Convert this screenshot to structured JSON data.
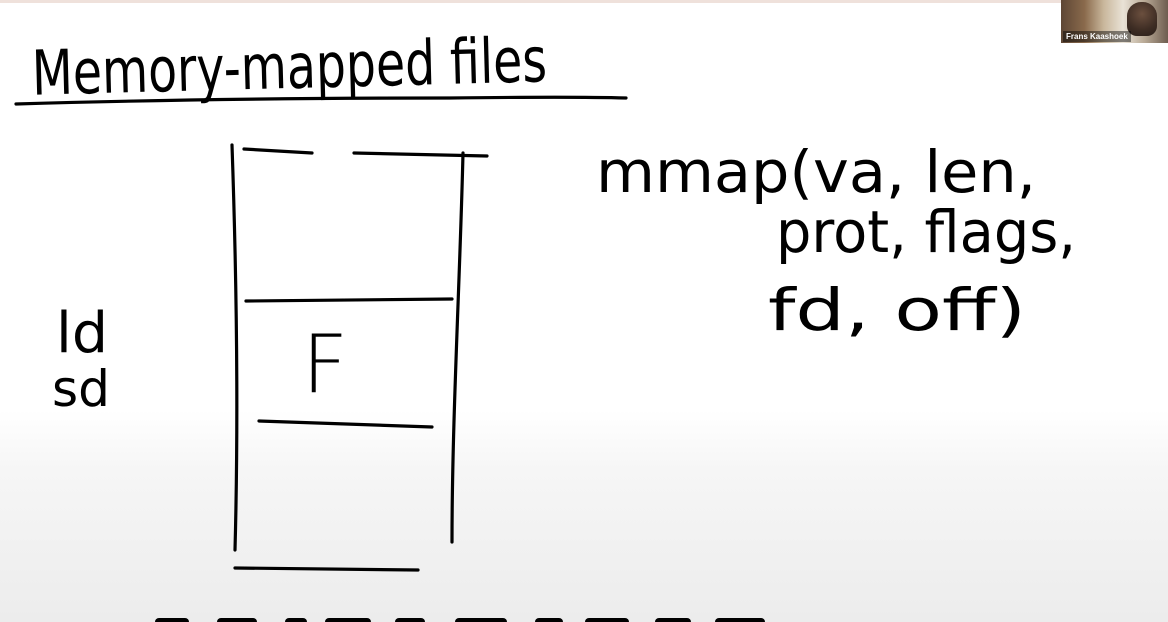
{
  "window": {
    "content": "whiteboard"
  },
  "whiteboard": {
    "title": "Memory-mapped files",
    "margin_notes": {
      "load": "ld",
      "store": "sd"
    },
    "region_label": "F",
    "syscall": {
      "line1": "mmap(va, len,",
      "line2": "prot, flags,",
      "line3": "fd, off)"
    }
  },
  "video": {
    "participant_name": "Frans Kaashoek"
  }
}
